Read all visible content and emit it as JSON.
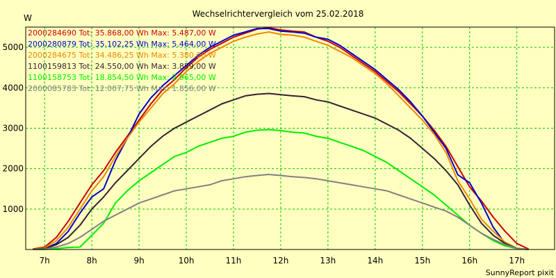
{
  "chart_data": {
    "type": "line",
    "title": "Wechselrichtervergleich vom 25.02.2018",
    "ylabel": "W",
    "footer": "SunnyReport pixit",
    "xlim": [
      6.6,
      17.8
    ],
    "ylim": [
      0,
      5500
    ],
    "x_ticks": [
      7,
      8,
      9,
      10,
      11,
      12,
      13,
      14,
      15,
      16,
      17
    ],
    "x_tick_labels": [
      "7h",
      "8h",
      "9h",
      "10h",
      "11h",
      "12h",
      "13h",
      "14h",
      "15h",
      "16h",
      "17h"
    ],
    "y_ticks": [
      1000,
      2000,
      3000,
      4000,
      5000
    ],
    "y_tick_labels": [
      "1000",
      "2000",
      "3000",
      "4000",
      "5000"
    ],
    "grid": true,
    "background_color": "#ffffc0",
    "grid_color": "#00cc00",
    "series": [
      {
        "name": "2000284690 Tot: 35.868,00 Wh Max: 5.487,00 W",
        "color": "#cc0000",
        "x": [
          6.75,
          7.0,
          7.25,
          7.5,
          7.75,
          8.0,
          8.25,
          8.5,
          8.75,
          9.0,
          9.25,
          9.5,
          9.75,
          10.0,
          10.25,
          10.5,
          10.75,
          11.0,
          11.25,
          11.5,
          11.75,
          12.0,
          12.25,
          12.5,
          12.75,
          13.0,
          13.25,
          13.5,
          13.75,
          14.0,
          14.25,
          14.5,
          14.75,
          15.0,
          15.25,
          15.5,
          15.75,
          16.0,
          16.25,
          16.5,
          16.75,
          17.0,
          17.25
        ],
        "values": [
          10,
          60,
          300,
          700,
          1150,
          1600,
          1950,
          2400,
          2800,
          3200,
          3600,
          3950,
          4200,
          4500,
          4750,
          4950,
          5100,
          5250,
          5350,
          5450,
          5487,
          5430,
          5400,
          5380,
          5250,
          5150,
          5000,
          4800,
          4600,
          4400,
          4150,
          3900,
          3600,
          3300,
          2950,
          2550,
          2050,
          1550,
          1200,
          800,
          450,
          150,
          10
        ]
      },
      {
        "name": "2000280879 Tot: 35.102,25 Wh Max: 5.464,00 W",
        "color": "#0000cc",
        "x": [
          6.75,
          7.0,
          7.25,
          7.5,
          7.75,
          8.0,
          8.25,
          8.5,
          8.75,
          9.0,
          9.25,
          9.5,
          9.75,
          10.0,
          10.25,
          10.5,
          10.75,
          11.0,
          11.25,
          11.5,
          11.75,
          12.0,
          12.25,
          12.5,
          12.75,
          13.0,
          13.25,
          13.5,
          13.75,
          14.0,
          14.25,
          14.5,
          14.75,
          15.0,
          15.25,
          15.5,
          15.75,
          16.0,
          16.25,
          16.5,
          16.75,
          17.0,
          17.25
        ],
        "values": [
          0,
          20,
          150,
          450,
          900,
          1300,
          1500,
          2200,
          2750,
          3350,
          3750,
          4050,
          4300,
          4550,
          4800,
          5000,
          5150,
          5300,
          5380,
          5464,
          5464,
          5400,
          5380,
          5350,
          5250,
          5200,
          5050,
          4850,
          4650,
          4450,
          4200,
          3950,
          3650,
          3300,
          2900,
          2500,
          1850,
          1650,
          1150,
          550,
          150,
          20,
          0
        ]
      },
      {
        "name": "2000284675 Tot: 34.486,25 Wh Max: 5.380,00 W",
        "color": "#ee8800",
        "x": [
          6.75,
          7.0,
          7.25,
          7.5,
          7.75,
          8.0,
          8.25,
          8.5,
          8.75,
          9.0,
          9.25,
          9.5,
          9.75,
          10.0,
          10.25,
          10.5,
          10.75,
          11.0,
          11.25,
          11.5,
          11.75,
          12.0,
          12.25,
          12.5,
          12.75,
          13.0,
          13.25,
          13.5,
          13.75,
          14.0,
          14.25,
          14.5,
          14.75,
          15.0,
          15.25,
          15.5,
          15.75,
          16.0,
          16.25,
          16.5,
          16.75,
          17.0,
          17.25
        ],
        "values": [
          0,
          40,
          220,
          550,
          1000,
          1450,
          1800,
          2300,
          2750,
          3150,
          3500,
          3850,
          4100,
          4400,
          4650,
          4850,
          5000,
          5150,
          5250,
          5330,
          5380,
          5320,
          5300,
          5250,
          5150,
          5050,
          4900,
          4750,
          4550,
          4350,
          4100,
          3800,
          3500,
          3200,
          2850,
          2400,
          1700,
          1250,
          750,
          450,
          180,
          30,
          0
        ]
      },
      {
        "name": "1100159813 Tot: 24.550,00 Wh Max: 3.859,00 W",
        "color": "#332233",
        "x": [
          6.75,
          7.0,
          7.25,
          7.5,
          7.75,
          8.0,
          8.25,
          8.5,
          8.75,
          9.0,
          9.25,
          9.5,
          9.75,
          10.0,
          10.25,
          10.5,
          10.75,
          11.0,
          11.25,
          11.5,
          11.75,
          12.0,
          12.25,
          12.5,
          12.75,
          13.0,
          13.25,
          13.5,
          13.75,
          14.0,
          14.25,
          14.5,
          14.75,
          15.0,
          15.25,
          15.5,
          15.75,
          16.0,
          16.25,
          16.5,
          16.75,
          17.0,
          17.25
        ],
        "values": [
          0,
          20,
          120,
          300,
          600,
          1000,
          1300,
          1650,
          1950,
          2250,
          2550,
          2800,
          3000,
          3150,
          3300,
          3450,
          3600,
          3700,
          3800,
          3840,
          3859,
          3830,
          3800,
          3780,
          3700,
          3650,
          3550,
          3450,
          3350,
          3250,
          3100,
          2950,
          2750,
          2500,
          2250,
          1950,
          1600,
          1100,
          650,
          350,
          150,
          30,
          0
        ]
      },
      {
        "name": "1100158753 Tot: 18.854,50 Wh Max: 2.965,00 W",
        "color": "#00ee00",
        "x": [
          6.75,
          7.0,
          7.25,
          7.5,
          7.75,
          8.0,
          8.25,
          8.5,
          8.75,
          9.0,
          9.25,
          9.5,
          9.75,
          10.0,
          10.25,
          10.5,
          10.75,
          11.0,
          11.25,
          11.5,
          11.75,
          12.0,
          12.25,
          12.5,
          12.75,
          13.0,
          13.25,
          13.5,
          13.75,
          14.0,
          14.25,
          14.5,
          14.75,
          15.0,
          15.25,
          15.5,
          15.75,
          16.0,
          16.25,
          16.5,
          16.75,
          17.0,
          17.25
        ],
        "values": [
          0,
          0,
          20,
          50,
          60,
          350,
          650,
          1150,
          1450,
          1700,
          1900,
          2100,
          2300,
          2400,
          2550,
          2650,
          2750,
          2800,
          2900,
          2950,
          2965,
          2940,
          2900,
          2880,
          2800,
          2750,
          2650,
          2550,
          2450,
          2300,
          2150,
          1950,
          1750,
          1550,
          1350,
          1100,
          850,
          600,
          400,
          220,
          90,
          20,
          0
        ]
      },
      {
        "name": "2000085783 Tot: 12.007,75 Wh Max: 1.856,00 W",
        "color": "#808080",
        "x": [
          6.75,
          7.0,
          7.25,
          7.5,
          7.75,
          8.0,
          8.25,
          8.5,
          8.75,
          9.0,
          9.25,
          9.5,
          9.75,
          10.0,
          10.25,
          10.5,
          10.75,
          11.0,
          11.25,
          11.5,
          11.75,
          12.0,
          12.25,
          12.5,
          12.75,
          13.0,
          13.25,
          13.5,
          13.75,
          14.0,
          14.25,
          14.5,
          14.75,
          15.0,
          15.25,
          15.5,
          15.75,
          16.0,
          16.25,
          16.5,
          16.75,
          17.0,
          17.25
        ],
        "values": [
          0,
          10,
          60,
          150,
          300,
          500,
          700,
          850,
          1000,
          1150,
          1250,
          1350,
          1450,
          1500,
          1550,
          1600,
          1700,
          1750,
          1800,
          1830,
          1856,
          1830,
          1800,
          1780,
          1750,
          1700,
          1650,
          1600,
          1550,
          1500,
          1450,
          1350,
          1250,
          1150,
          1050,
          950,
          800,
          600,
          400,
          250,
          120,
          30,
          0
        ]
      }
    ]
  }
}
